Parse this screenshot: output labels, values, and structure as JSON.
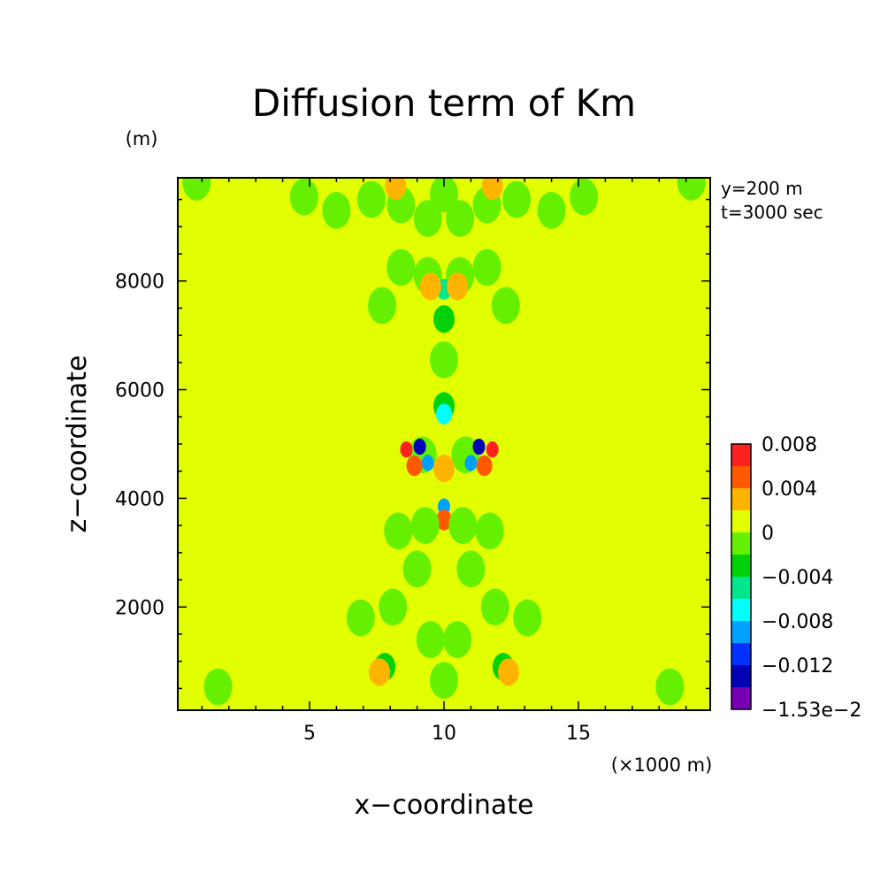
{
  "chart_data": {
    "type": "heatmap",
    "title": "Diffusion term of Km",
    "xlabel": "x−coordinate",
    "ylabel": "z−coordinate",
    "x_unit": "(×1000 m)",
    "y_unit": "(m)",
    "annotations": [
      "y=200 m",
      "t=3000 sec"
    ],
    "xlim": [
      0.1,
      19.9
    ],
    "ylim": [
      100,
      9900
    ],
    "x_ticks": [
      5,
      10,
      15
    ],
    "x_tick_labels": [
      "5",
      "10",
      "15"
    ],
    "y_ticks": [
      2000,
      4000,
      6000,
      8000
    ],
    "y_tick_labels": [
      "2000",
      "4000",
      "6000",
      "8000"
    ],
    "x_minor_step": 1,
    "y_minor_step": 500,
    "background_value": 0,
    "colorbar": {
      "tick_labels": [
        "0.008",
        "0.004",
        "0",
        "−0.004",
        "−0.008",
        "−0.012",
        "−1.53e−2"
      ],
      "bins": [
        {
          "color": "#ff2020",
          "range": [
            0.008,
            0.01
          ]
        },
        {
          "color": "#ff5a00",
          "range": [
            0.006,
            0.008
          ]
        },
        {
          "color": "#ffb400",
          "range": [
            0.002,
            0.006
          ]
        },
        {
          "color": "#e1ff00",
          "range": [
            0.0,
            0.002
          ]
        },
        {
          "color": "#64f000",
          "range": [
            -0.002,
            0.0
          ]
        },
        {
          "color": "#00d20a",
          "range": [
            -0.004,
            -0.002
          ]
        },
        {
          "color": "#00e68c",
          "range": [
            -0.006,
            -0.004
          ]
        },
        {
          "color": "#00ffff",
          "range": [
            -0.008,
            -0.006
          ]
        },
        {
          "color": "#00a0ff",
          "range": [
            -0.01,
            -0.008
          ]
        },
        {
          "color": "#0032ff",
          "range": [
            -0.012,
            -0.01
          ]
        },
        {
          "color": "#0000b4",
          "range": [
            -0.014,
            -0.012
          ]
        },
        {
          "color": "#7800b4",
          "range": [
            -0.0153,
            -0.014
          ]
        }
      ]
    },
    "features": [
      {
        "x": 0.8,
        "z": 9820,
        "value": -0.001
      },
      {
        "x": 19.2,
        "z": 9820,
        "value": -0.001
      },
      {
        "x": 1.6,
        "z": 530,
        "value": -0.001
      },
      {
        "x": 18.4,
        "z": 530,
        "value": -0.001
      },
      {
        "x": 4.8,
        "z": 9550,
        "value": -0.001
      },
      {
        "x": 15.2,
        "z": 9550,
        "value": -0.001
      },
      {
        "x": 6.0,
        "z": 9300,
        "value": -0.001
      },
      {
        "x": 14.0,
        "z": 9300,
        "value": -0.001
      },
      {
        "x": 7.3,
        "z": 9500,
        "value": -0.001
      },
      {
        "x": 12.7,
        "z": 9500,
        "value": -0.001
      },
      {
        "x": 8.4,
        "z": 9400,
        "value": -0.001
      },
      {
        "x": 11.6,
        "z": 9400,
        "value": -0.001
      },
      {
        "x": 9.4,
        "z": 9150,
        "value": -0.001
      },
      {
        "x": 10.6,
        "z": 9150,
        "value": -0.001
      },
      {
        "x": 10.0,
        "z": 9600,
        "value": -0.001
      },
      {
        "x": 8.2,
        "z": 9750,
        "value": 0.003
      },
      {
        "x": 11.8,
        "z": 9750,
        "value": 0.003
      },
      {
        "x": 8.4,
        "z": 8250,
        "value": -0.001
      },
      {
        "x": 11.6,
        "z": 8250,
        "value": -0.001
      },
      {
        "x": 7.7,
        "z": 7550,
        "value": -0.001
      },
      {
        "x": 12.3,
        "z": 7550,
        "value": -0.001
      },
      {
        "x": 9.4,
        "z": 8100,
        "value": -0.001
      },
      {
        "x": 10.6,
        "z": 8100,
        "value": -0.001
      },
      {
        "x": 10.0,
        "z": 7300,
        "value": -0.003
      },
      {
        "x": 10.0,
        "z": 7850,
        "value": -0.005
      },
      {
        "x": 9.5,
        "z": 7900,
        "value": 0.003
      },
      {
        "x": 10.5,
        "z": 7900,
        "value": 0.003
      },
      {
        "x": 10.0,
        "z": 6550,
        "value": -0.001
      },
      {
        "x": 10.0,
        "z": 5700,
        "value": -0.003
      },
      {
        "x": 10.0,
        "z": 5550,
        "value": -0.007
      },
      {
        "x": 9.2,
        "z": 4800,
        "value": -0.001
      },
      {
        "x": 10.8,
        "z": 4800,
        "value": -0.001
      },
      {
        "x": 8.6,
        "z": 4900,
        "value": 0.009
      },
      {
        "x": 11.8,
        "z": 4900,
        "value": 0.009
      },
      {
        "x": 9.1,
        "z": 4950,
        "value": -0.0125
      },
      {
        "x": 11.3,
        "z": 4950,
        "value": -0.0125
      },
      {
        "x": 9.4,
        "z": 4650,
        "value": -0.009
      },
      {
        "x": 11.0,
        "z": 4650,
        "value": -0.009
      },
      {
        "x": 8.9,
        "z": 4600,
        "value": 0.007
      },
      {
        "x": 11.5,
        "z": 4600,
        "value": 0.007
      },
      {
        "x": 10.0,
        "z": 4550,
        "value": 0.003
      },
      {
        "x": 10.0,
        "z": 3850,
        "value": -0.009
      },
      {
        "x": 10.0,
        "z": 3600,
        "value": 0.007
      },
      {
        "x": 9.3,
        "z": 3500,
        "value": -0.001
      },
      {
        "x": 10.7,
        "z": 3500,
        "value": -0.001
      },
      {
        "x": 8.3,
        "z": 3400,
        "value": -0.001
      },
      {
        "x": 11.7,
        "z": 3400,
        "value": -0.001
      },
      {
        "x": 9.0,
        "z": 2700,
        "value": -0.001
      },
      {
        "x": 11.0,
        "z": 2700,
        "value": -0.001
      },
      {
        "x": 8.1,
        "z": 2000,
        "value": -0.001
      },
      {
        "x": 11.9,
        "z": 2000,
        "value": -0.001
      },
      {
        "x": 9.5,
        "z": 1400,
        "value": -0.001
      },
      {
        "x": 10.5,
        "z": 1400,
        "value": -0.001
      },
      {
        "x": 7.8,
        "z": 900,
        "value": -0.003
      },
      {
        "x": 12.2,
        "z": 900,
        "value": -0.003
      },
      {
        "x": 10.0,
        "z": 650,
        "value": -0.001
      },
      {
        "x": 7.6,
        "z": 800,
        "value": 0.003
      },
      {
        "x": 12.4,
        "z": 800,
        "value": 0.003
      },
      {
        "x": 6.9,
        "z": 1800,
        "value": -0.001
      },
      {
        "x": 13.1,
        "z": 1800,
        "value": -0.001
      }
    ]
  }
}
